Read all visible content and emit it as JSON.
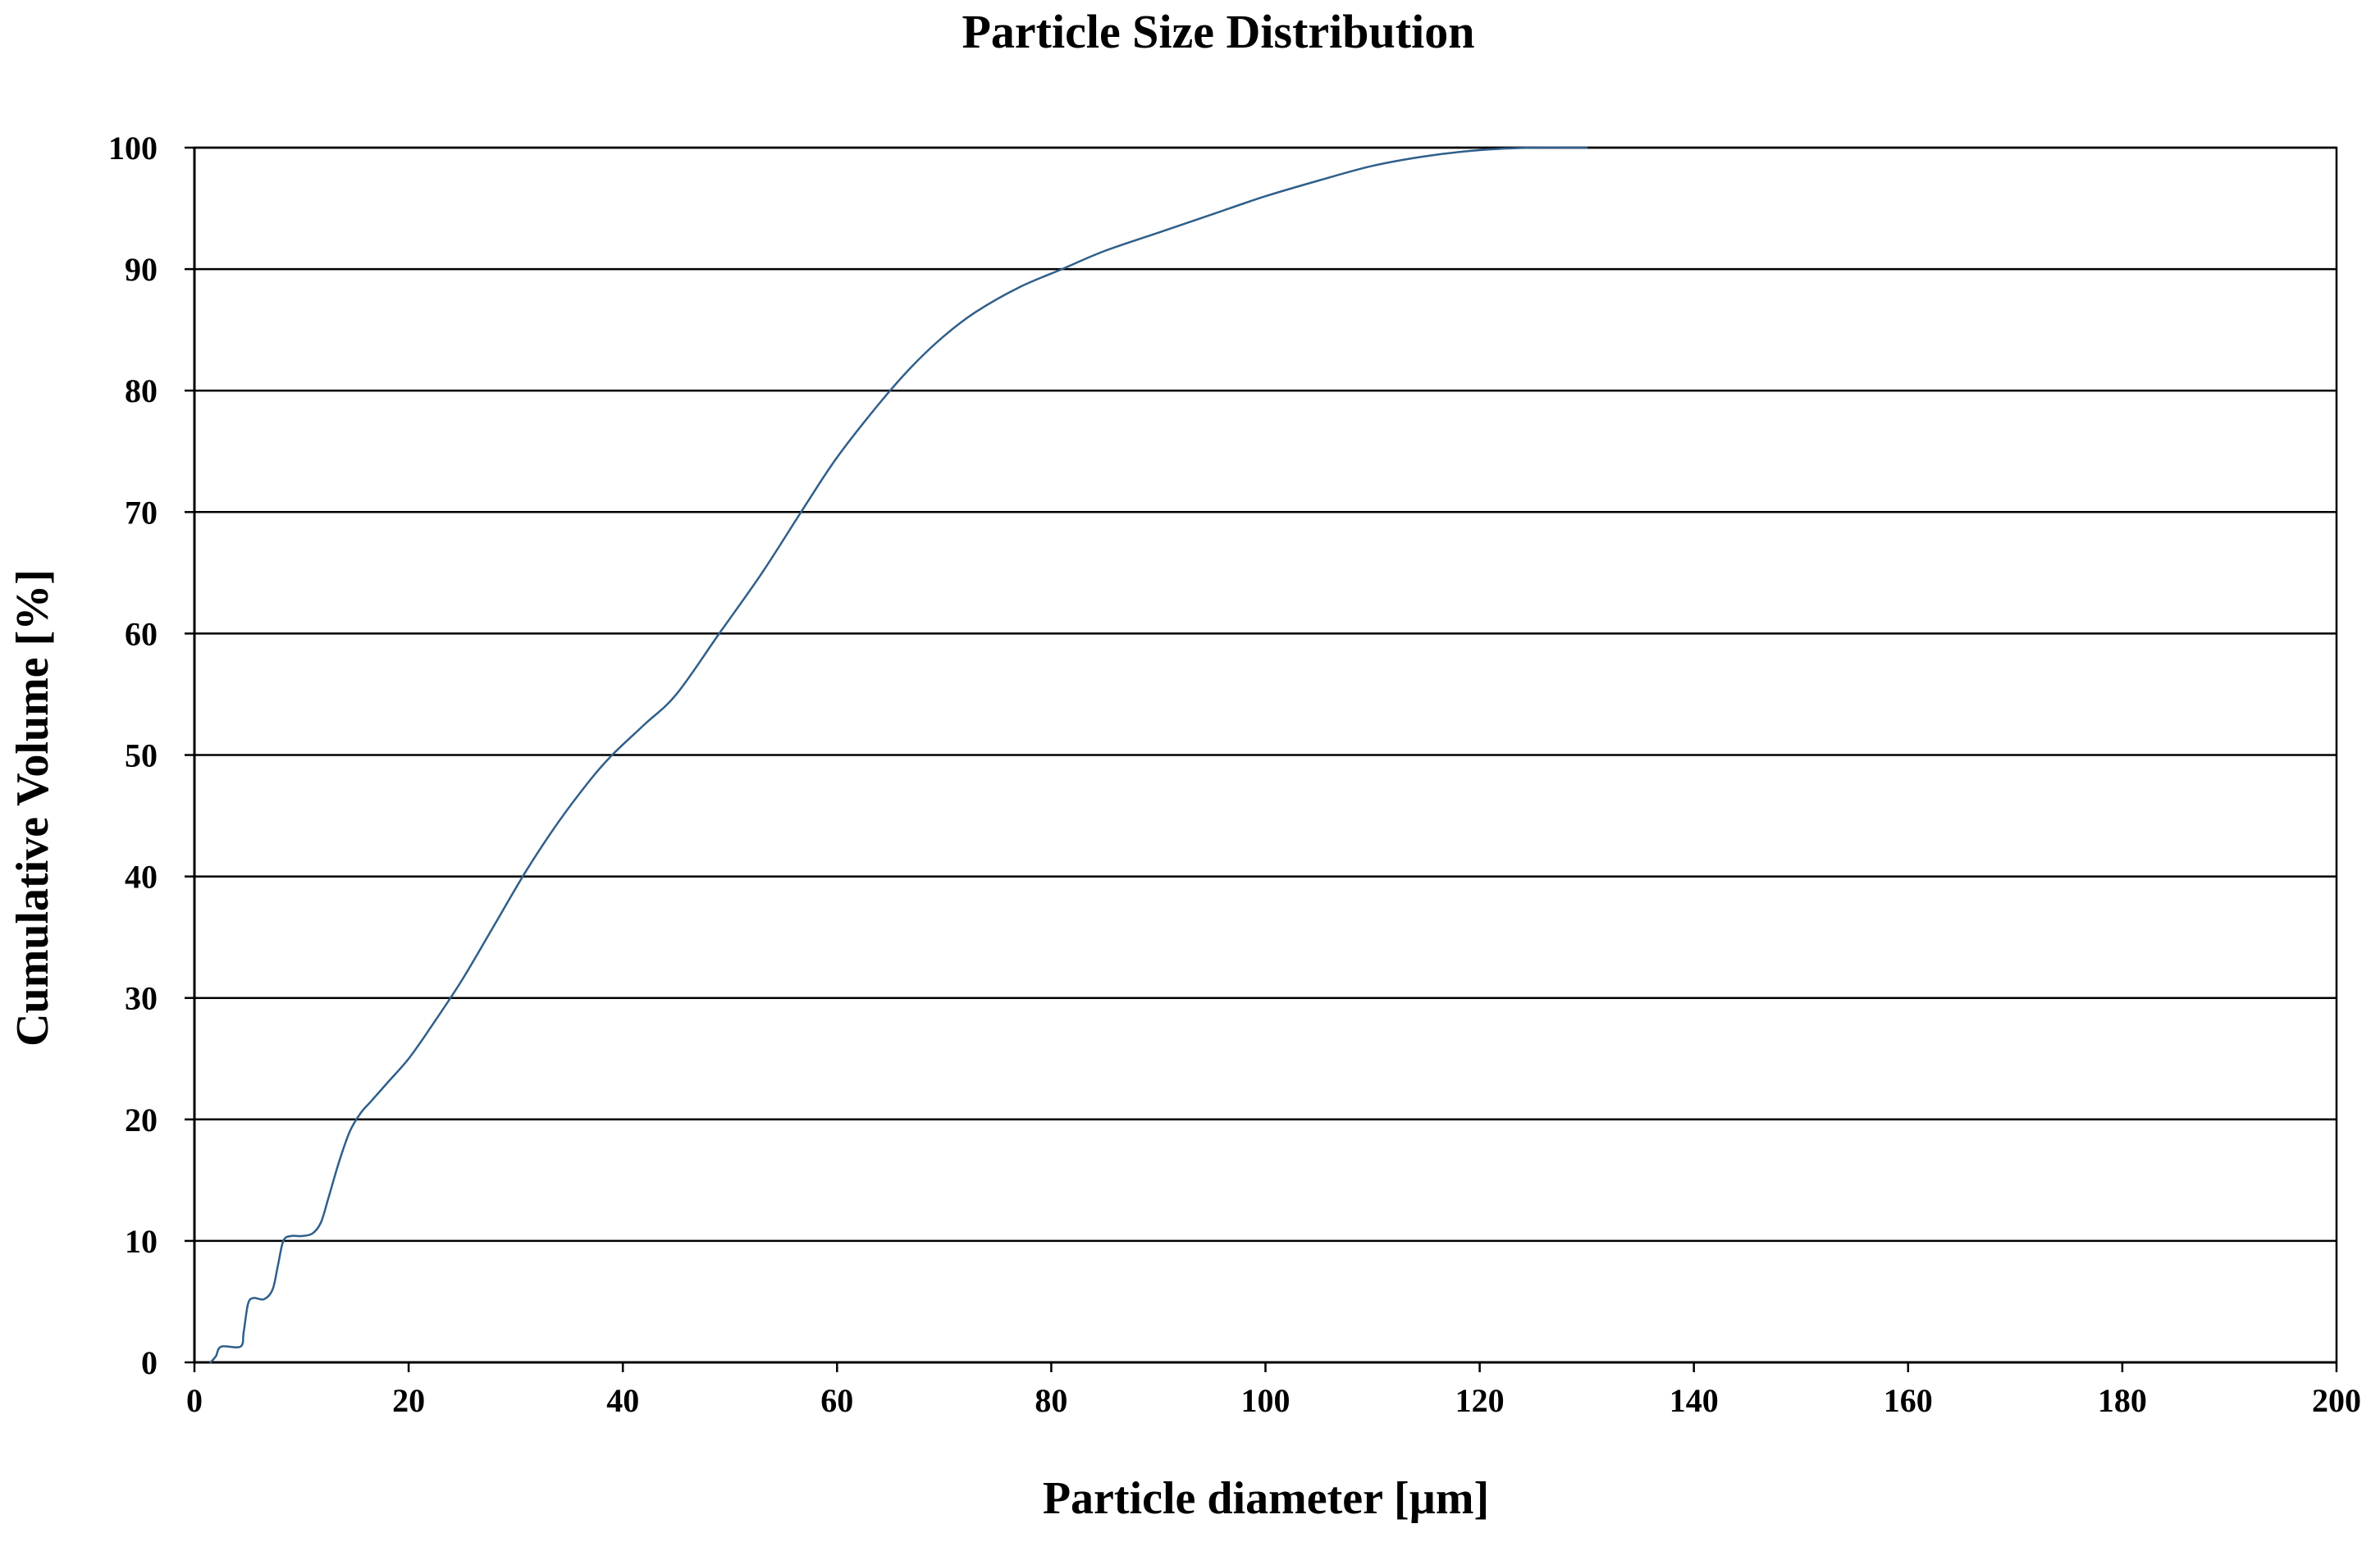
{
  "chart_data": {
    "type": "line",
    "title": "Particle Size Distribution",
    "xlabel": "Particle diameter [µm]",
    "ylabel": "Cumulative Volume [%]",
    "xlim": [
      0,
      200
    ],
    "ylim": [
      0,
      100
    ],
    "x_ticks": [
      "0",
      "20",
      "40",
      "60",
      "80",
      "100",
      "120",
      "140",
      "160",
      "180",
      "200"
    ],
    "y_ticks": [
      "0",
      "10",
      "20",
      "30",
      "40",
      "50",
      "60",
      "70",
      "80",
      "90",
      "100"
    ],
    "grid": "horizontal",
    "legend": "none",
    "series": [
      {
        "color": "#2e5f8a",
        "x": [
          1.5,
          2.0,
          2.5,
          4.3,
          4.6,
          5.0,
          5.5,
          6.5,
          7.3,
          7.8,
          8.3,
          9.0,
          10.0,
          11.0,
          11.8,
          12.5,
          13.5,
          14.5,
          15.5,
          16.5,
          18.0,
          20.0,
          22.0,
          25.0,
          28.0,
          31.0,
          34.0,
          37.0,
          39.0,
          42.0,
          45.0,
          49.0,
          53.0,
          57.0,
          60.0,
          64.0,
          67.0,
          70.0,
          73.0,
          77.0,
          81.0,
          85.0,
          90.0,
          95.0,
          100.0,
          105.0,
          110.0,
          115.0,
          120.0,
          125.0,
          130.0
        ],
        "values": [
          0,
          0.5,
          1.3,
          1.3,
          2.5,
          4.8,
          5.3,
          5.2,
          6.0,
          8.0,
          10.0,
          10.4,
          10.4,
          10.6,
          11.5,
          13.5,
          16.5,
          19.0,
          20.5,
          21.5,
          23.0,
          25.0,
          27.5,
          31.5,
          36.0,
          40.5,
          44.5,
          48.0,
          50.0,
          52.5,
          55.0,
          60.0,
          65.0,
          70.5,
          74.5,
          79.0,
          82.0,
          84.5,
          86.5,
          88.5,
          90.0,
          91.5,
          93.0,
          94.5,
          96.0,
          97.3,
          98.5,
          99.3,
          99.8,
          100.0,
          100.0
        ]
      }
    ]
  }
}
